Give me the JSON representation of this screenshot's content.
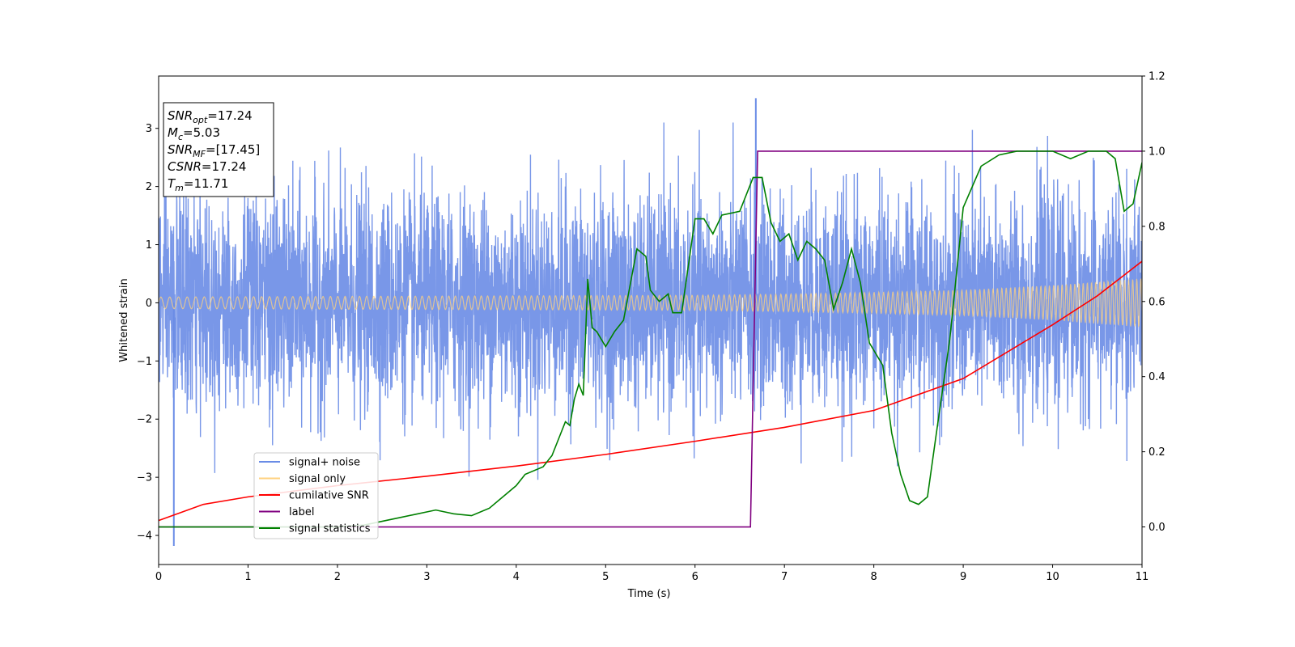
{
  "chart_data": {
    "type": "line",
    "xlabel": "Time (s)",
    "ylabel": "Whitened strain",
    "xlim": [
      0,
      11
    ],
    "ylim_left": [
      -4.5,
      3.9
    ],
    "ylim_right": [
      -0.1,
      1.2
    ],
    "x_ticks": [
      "0",
      "1",
      "2",
      "3",
      "4",
      "5",
      "6",
      "7",
      "8",
      "9",
      "10",
      "11"
    ],
    "y_left_ticks": [
      -4,
      -3,
      -2,
      -1,
      0,
      1,
      2,
      3
    ],
    "y_left_tick_labels": [
      "−4",
      "−3",
      "−2",
      "−1",
      "0",
      "1",
      "2",
      "3"
    ],
    "y_right_ticks": [
      0.0,
      0.2,
      0.4,
      0.6,
      0.8,
      1.0,
      1.2
    ],
    "y_right_tick_labels": [
      "0.0",
      "0.2",
      "0.4",
      "0.6",
      "0.8",
      "1.0",
      "1.2"
    ],
    "info_box": [
      {
        "sym": "SNR",
        "sub": "opt",
        "value": "=17.24"
      },
      {
        "sym": "M",
        "sub": "c",
        "value": "=5.03"
      },
      {
        "sym": "SNR",
        "sub": "MF",
        "value": "=[17.45]"
      },
      {
        "sym": "CSNR",
        "sub": "",
        "value": "=17.24"
      },
      {
        "sym": "T",
        "sub": "m",
        "value": "=11.71"
      }
    ],
    "legend": {
      "placement": "lower-left",
      "entries": [
        {
          "label": "signal+ noise",
          "color": "#6a8ce6"
        },
        {
          "label": "signal only",
          "color": "#ffd27f"
        },
        {
          "label": "cumilative SNR",
          "color": "#ff0000"
        },
        {
          "label": "label",
          "color": "#800080"
        },
        {
          "label": "signal statistics",
          "color": "#008000"
        }
      ]
    },
    "series": [
      {
        "name": "signal+ noise",
        "axis": "left",
        "color": "#6a8ce6",
        "style": "dense noise, approx. N(0, 0.9) whitened strain, peaks to about 3.5 and -4.2",
        "band_core": [
          -1.5,
          1.5
        ],
        "peaks": [
          {
            "x": 6.68,
            "y": 3.52
          },
          {
            "x": 0.17,
            "y": -4.18
          }
        ]
      },
      {
        "name": "signal only",
        "axis": "left",
        "color": "#ffd27f",
        "style": "chirp oscillation, amplitude envelope",
        "envelope_x": [
          0,
          2,
          4,
          6,
          7,
          8,
          9,
          10,
          11
        ],
        "envelope_amp": [
          0.1,
          0.11,
          0.12,
          0.13,
          0.15,
          0.18,
          0.22,
          0.3,
          0.42
        ]
      },
      {
        "name": "cumilative SNR",
        "axis": "right",
        "color": "#ff0000",
        "x": [
          0,
          0.5,
          1,
          2,
          3,
          4,
          5,
          6,
          7,
          8,
          9,
          10,
          10.5,
          11
        ],
        "y": [
          0.017,
          0.06,
          0.08,
          0.11,
          0.135,
          0.162,
          0.193,
          0.228,
          0.265,
          0.31,
          0.395,
          0.538,
          0.615,
          0.707
        ]
      },
      {
        "name": "label",
        "axis": "right",
        "color": "#800080",
        "x": [
          0,
          6.62,
          6.7,
          11
        ],
        "y": [
          0,
          0,
          1,
          1
        ]
      },
      {
        "name": "signal statistics",
        "axis": "right",
        "color": "#008000",
        "x": [
          0,
          1,
          2,
          2.3,
          2.5,
          2.7,
          2.9,
          3.1,
          3.3,
          3.5,
          3.7,
          3.8,
          3.9,
          4.0,
          4.1,
          4.3,
          4.4,
          4.5,
          4.55,
          4.6,
          4.65,
          4.7,
          4.75,
          4.8,
          4.85,
          4.9,
          5.0,
          5.1,
          5.2,
          5.35,
          5.45,
          5.5,
          5.6,
          5.7,
          5.75,
          5.85,
          6.0,
          6.1,
          6.2,
          6.3,
          6.5,
          6.65,
          6.75,
          6.85,
          6.95,
          7.05,
          7.15,
          7.25,
          7.35,
          7.45,
          7.55,
          7.65,
          7.75,
          7.85,
          7.95,
          8.1,
          8.2,
          8.3,
          8.4,
          8.5,
          8.6,
          8.7,
          8.85,
          9.0,
          9.2,
          9.4,
          9.6,
          9.8,
          10.0,
          10.2,
          10.4,
          10.6,
          10.7,
          10.8,
          10.9,
          11.0
        ],
        "y": [
          0.0,
          0.0,
          0.0,
          0.005,
          0.015,
          0.025,
          0.035,
          0.045,
          0.035,
          0.03,
          0.05,
          0.07,
          0.09,
          0.11,
          0.14,
          0.16,
          0.19,
          0.25,
          0.28,
          0.27,
          0.34,
          0.38,
          0.35,
          0.66,
          0.53,
          0.52,
          0.48,
          0.52,
          0.55,
          0.74,
          0.72,
          0.63,
          0.6,
          0.62,
          0.57,
          0.57,
          0.82,
          0.82,
          0.78,
          0.83,
          0.84,
          0.93,
          0.93,
          0.81,
          0.76,
          0.78,
          0.71,
          0.76,
          0.74,
          0.71,
          0.58,
          0.65,
          0.74,
          0.65,
          0.49,
          0.43,
          0.25,
          0.14,
          0.07,
          0.06,
          0.08,
          0.25,
          0.5,
          0.85,
          0.96,
          0.99,
          1.0,
          1.0,
          1.0,
          0.98,
          1.0,
          1.0,
          0.98,
          0.84,
          0.86,
          0.97
        ]
      }
    ]
  }
}
